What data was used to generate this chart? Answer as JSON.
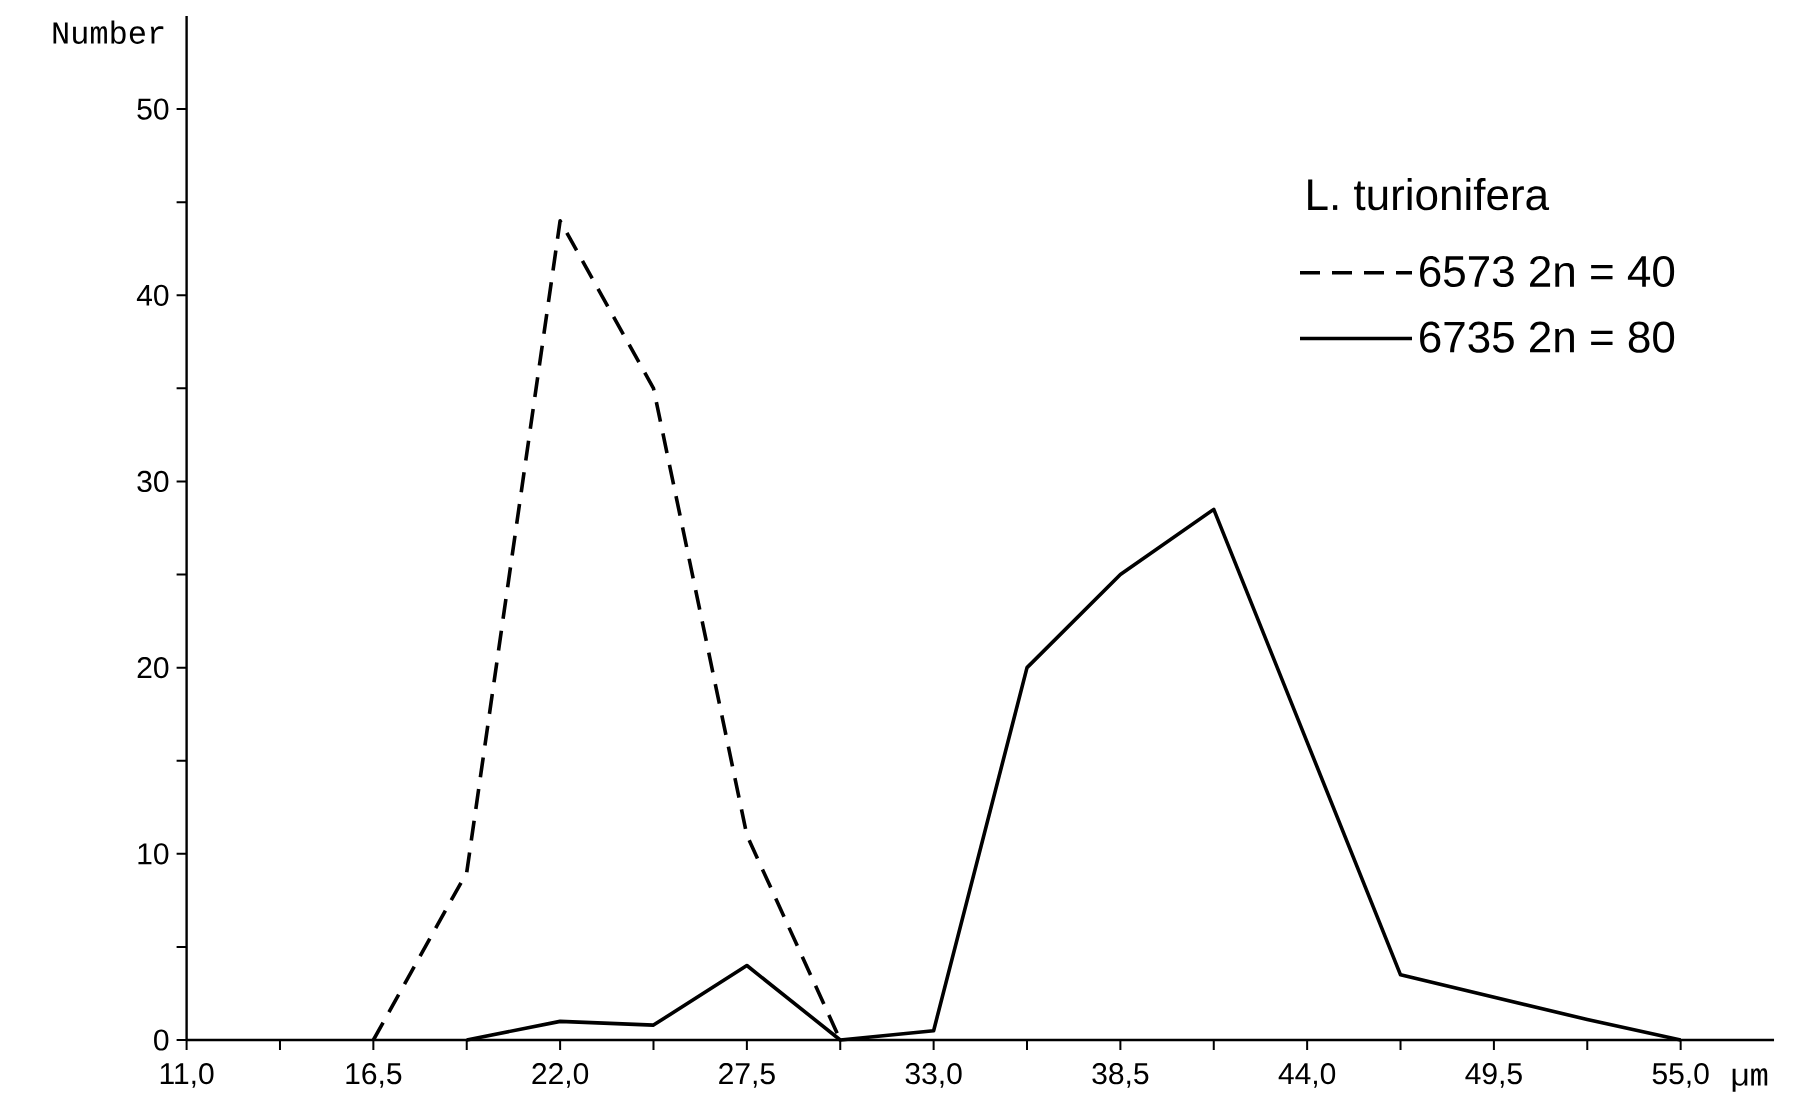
{
  "chart_data": {
    "type": "line",
    "ylabel": "Number",
    "xlabel": "µm",
    "legend_title": "L. turionifera",
    "legend": "top right",
    "xlim": [
      11,
      57.75
    ],
    "ylim": [
      0,
      55
    ],
    "xticks": [
      {
        "value": 11.0,
        "label": "11,0"
      },
      {
        "value": 13.75,
        "label": null
      },
      {
        "value": 16.5,
        "label": "16,5"
      },
      {
        "value": 19.25,
        "label": null
      },
      {
        "value": 22.0,
        "label": "22,0"
      },
      {
        "value": 24.75,
        "label": null
      },
      {
        "value": 27.5,
        "label": "27,5"
      },
      {
        "value": 30.25,
        "label": null
      },
      {
        "value": 33.0,
        "label": "33,0"
      },
      {
        "value": 35.75,
        "label": null
      },
      {
        "value": 38.5,
        "label": "38,5"
      },
      {
        "value": 41.25,
        "label": null
      },
      {
        "value": 44.0,
        "label": "44,0"
      },
      {
        "value": 46.75,
        "label": null
      },
      {
        "value": 49.5,
        "label": "49,5"
      },
      {
        "value": 52.25,
        "label": null
      },
      {
        "value": 55.0,
        "label": "55,0"
      }
    ],
    "yticks": [
      0,
      {
        "value": 5,
        "label": null
      },
      10,
      {
        "value": 15,
        "label": null
      },
      20,
      {
        "value": 25,
        "label": null
      },
      30,
      {
        "value": 35,
        "label": null
      },
      40,
      {
        "value": 45,
        "label": null
      },
      50
    ],
    "series": [
      {
        "name": "6573 2n = 40",
        "color": "#000000",
        "line_style": "dashed",
        "x": [
          16.5,
          19.25,
          22.0,
          24.75,
          27.5,
          30.25
        ],
        "values": [
          0,
          9,
          44,
          35,
          11,
          0
        ]
      },
      {
        "name": "6735 2n = 80",
        "color": "#000000",
        "line_style": "solid",
        "x": [
          19.25,
          22.0,
          24.75,
          27.5,
          30.25,
          33.0,
          35.75,
          38.5,
          41.25,
          44.0,
          46.75,
          49.5,
          52.25,
          55.0
        ],
        "values": [
          0,
          1,
          0.8,
          4,
          0,
          0.5,
          20,
          25,
          28.5,
          16,
          3.5,
          2.3,
          1.1,
          0
        ]
      }
    ]
  }
}
